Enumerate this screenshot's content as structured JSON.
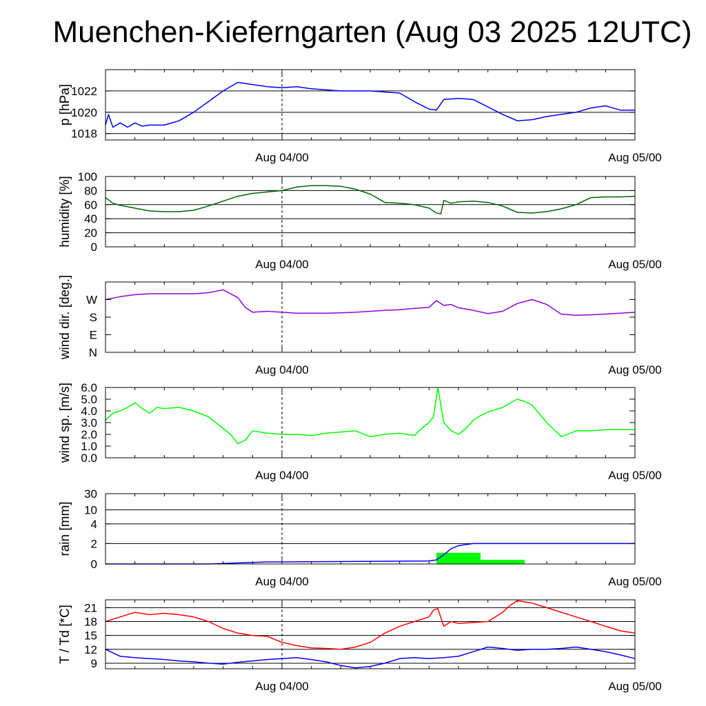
{
  "title": "Muenchen-Kieferngarten (Aug 03 2025 12UTC)",
  "x_axis": {
    "ticks": [
      "Aug 04/00",
      "Aug 05/00"
    ],
    "tick_hours": [
      12,
      36
    ],
    "range_hours": [
      0,
      36
    ]
  },
  "chart_data": [
    {
      "type": "line",
      "ylabel": "p [hPa]",
      "yticks": [
        1018,
        1020,
        1022
      ],
      "ytick_labels": [
        "1018",
        "1020",
        "1022"
      ],
      "ylim": [
        1017.4,
        1024.0
      ],
      "grid": true,
      "series": [
        {
          "color": "#0000ff",
          "x": [
            0,
            0.2,
            0.5,
            1,
            1.5,
            2,
            2.5,
            3,
            4,
            5,
            6,
            7,
            8,
            9,
            10,
            11,
            12,
            13,
            14,
            16,
            18,
            20,
            21,
            22,
            22.5,
            23,
            24,
            25,
            26,
            27,
            27.5,
            28,
            29,
            30,
            31,
            32,
            33,
            34,
            35,
            36
          ],
          "y": [
            1018.8,
            1019.8,
            1018.6,
            1019.0,
            1018.6,
            1019.0,
            1018.7,
            1018.8,
            1018.8,
            1019.2,
            1020.0,
            1021.0,
            1022.0,
            1022.8,
            1022.6,
            1022.4,
            1022.3,
            1022.4,
            1022.2,
            1022.0,
            1022.0,
            1021.8,
            1021.0,
            1020.3,
            1020.2,
            1021.2,
            1021.3,
            1021.2,
            1020.5,
            1019.8,
            1019.5,
            1019.2,
            1019.3,
            1019.6,
            1019.8,
            1020.0,
            1020.4,
            1020.6,
            1020.2,
            1020.2
          ]
        }
      ]
    },
    {
      "type": "line",
      "ylabel": "humidity [%]",
      "yticks": [
        0,
        20,
        40,
        60,
        80,
        100
      ],
      "ytick_labels": [
        "0",
        "20",
        "40",
        "60",
        "80",
        "100"
      ],
      "ylim": [
        0,
        100
      ],
      "grid": true,
      "series": [
        {
          "color": "#006400",
          "x": [
            0,
            0.5,
            1,
            2,
            3,
            4,
            5,
            6,
            7,
            8,
            9,
            10,
            11,
            12,
            13,
            14,
            15,
            16,
            17,
            18,
            19,
            20,
            21,
            22,
            22.5,
            22.8,
            23,
            23.5,
            24,
            25,
            26,
            27,
            28,
            29,
            30,
            31,
            32,
            33,
            34,
            35,
            36
          ],
          "y": [
            70,
            62,
            59,
            55,
            51,
            50,
            50,
            52,
            58,
            65,
            72,
            76,
            78,
            80,
            85,
            87,
            87,
            86,
            82,
            75,
            63,
            62,
            60,
            55,
            48,
            47,
            66,
            62,
            64,
            65,
            63,
            58,
            49,
            48,
            50,
            54,
            60,
            70,
            71,
            71,
            72
          ]
        }
      ]
    },
    {
      "type": "line",
      "ylabel": "wind dir. [deg.]",
      "yticks": [
        0,
        90,
        180,
        270
      ],
      "ytick_labels": [
        "N",
        "E",
        "S",
        "W"
      ],
      "ylim": [
        0,
        360
      ],
      "grid": false,
      "series": [
        {
          "color": "#9400d3",
          "x": [
            0,
            1,
            2,
            3,
            4,
            5,
            6,
            7,
            8,
            9,
            9.5,
            10,
            11,
            12,
            13,
            14,
            15,
            16,
            17,
            18,
            19,
            20,
            21,
            22,
            22.5,
            23,
            23.5,
            24,
            25,
            26,
            27,
            28,
            29,
            30,
            31,
            32,
            33,
            34,
            35,
            36
          ],
          "y": [
            270,
            285,
            295,
            300,
            300,
            300,
            300,
            305,
            320,
            280,
            230,
            205,
            210,
            205,
            200,
            200,
            200,
            202,
            205,
            210,
            215,
            218,
            225,
            230,
            265,
            240,
            245,
            228,
            215,
            198,
            210,
            250,
            270,
            245,
            195,
            190,
            192,
            196,
            200,
            205
          ]
        }
      ]
    },
    {
      "type": "line",
      "ylabel": "wind sp. [m/s]",
      "yticks": [
        0,
        1,
        2,
        3,
        4,
        5,
        6
      ],
      "ytick_labels": [
        "0.0",
        "1.0",
        "2.0",
        "3.0",
        "4.0",
        "5.0",
        "6.0"
      ],
      "ylim": [
        0,
        6.0
      ],
      "grid": false,
      "series": [
        {
          "color": "#00ff00",
          "x": [
            0,
            0.5,
            1,
            1.5,
            2,
            2.5,
            3,
            3.5,
            4,
            5,
            6,
            7,
            8,
            8.5,
            9,
            9.5,
            10,
            11,
            12,
            13,
            14,
            15,
            16,
            17,
            18,
            19,
            20,
            21,
            21.5,
            22,
            22.3,
            22.6,
            23,
            23.5,
            24,
            24.5,
            25,
            25.5,
            26,
            27,
            28,
            28.5,
            29,
            30,
            31,
            32,
            33,
            34,
            35,
            36
          ],
          "y": [
            3.2,
            3.8,
            4.0,
            4.3,
            4.7,
            4.2,
            3.8,
            4.3,
            4.2,
            4.3,
            4.0,
            3.5,
            2.5,
            2.0,
            1.2,
            1.5,
            2.3,
            2.1,
            2.0,
            2.0,
            1.9,
            2.1,
            2.2,
            2.3,
            1.8,
            2.0,
            2.1,
            1.9,
            2.5,
            3.0,
            3.5,
            6.0,
            3.0,
            2.3,
            2.0,
            2.5,
            3.2,
            3.6,
            3.9,
            4.3,
            5.0,
            4.8,
            4.5,
            3.0,
            1.8,
            2.3,
            2.3,
            2.4,
            2.4,
            2.4
          ]
        }
      ]
    },
    {
      "type": "bar+line",
      "ylabel": "rain [mm]",
      "yticks": [
        0,
        2,
        4,
        10,
        30
      ],
      "ytick_labels": [
        "0",
        "2",
        "4",
        "10",
        "30"
      ],
      "ylim": [
        0,
        30
      ],
      "scale": "nonlinear",
      "grid": true,
      "bars": {
        "color": "#00ff00",
        "start": [
          22.5,
          25.5
        ],
        "end": [
          25.5,
          28.5
        ],
        "values": [
          1.1,
          0.4
        ]
      },
      "series": [
        {
          "color": "#0000ff",
          "x": [
            0,
            7,
            9,
            11,
            12,
            22,
            22.5,
            23,
            23.5,
            24,
            25,
            36
          ],
          "y": [
            0.0,
            0.0,
            0.1,
            0.2,
            0.2,
            0.3,
            0.4,
            0.9,
            1.5,
            1.8,
            2.0,
            2.0
          ]
        }
      ]
    },
    {
      "type": "line",
      "ylabel": "T / Td [*C]",
      "yticks": [
        9,
        12,
        15,
        18,
        21
      ],
      "ytick_labels": [
        "9",
        "12",
        "15",
        "18",
        "21"
      ],
      "ylim": [
        7.8,
        22.7
      ],
      "grid": true,
      "series": [
        {
          "color": "#ff0000",
          "x": [
            0,
            1,
            2,
            3,
            4,
            5,
            6,
            7,
            8,
            9,
            10,
            11,
            12,
            13,
            14,
            15,
            16,
            17,
            18,
            19,
            20,
            21,
            22,
            22.3,
            22.6,
            23,
            23.5,
            24,
            25,
            26,
            27,
            27.5,
            28,
            29,
            30,
            31,
            32,
            33,
            34,
            35,
            36
          ],
          "y": [
            18,
            19,
            20,
            19.5,
            19.8,
            19.5,
            19,
            18,
            16.5,
            15.5,
            15,
            14.8,
            13.5,
            12.8,
            12.3,
            12.2,
            12.0,
            12.5,
            13.5,
            15.5,
            17,
            18,
            19,
            20.5,
            20.8,
            17,
            18,
            17.6,
            17.8,
            18,
            20,
            21.5,
            22.5,
            22.0,
            21.0,
            20.0,
            19.0,
            18.0,
            17.0,
            16.0,
            15.5
          ]
        },
        {
          "color": "#0000ff",
          "x": [
            0,
            1,
            2,
            3,
            4,
            5,
            6,
            7,
            8,
            9,
            10,
            11,
            12,
            13,
            14,
            15,
            16,
            17,
            18,
            19,
            20,
            21,
            22,
            23,
            24,
            25,
            26,
            27,
            28,
            29,
            30,
            31,
            32,
            33,
            34,
            35,
            36
          ],
          "y": [
            12,
            10.5,
            10.2,
            10,
            9.8,
            9.5,
            9.3,
            9.0,
            8.8,
            9.2,
            9.5,
            9.8,
            10,
            10.2,
            9.8,
            9.3,
            8.5,
            8.0,
            8.3,
            9.0,
            10.0,
            10.2,
            10.0,
            10.2,
            10.5,
            11.5,
            12.5,
            12.2,
            11.8,
            12.0,
            12.0,
            12.2,
            12.5,
            12.0,
            11.5,
            10.8,
            10.0
          ]
        }
      ]
    }
  ]
}
